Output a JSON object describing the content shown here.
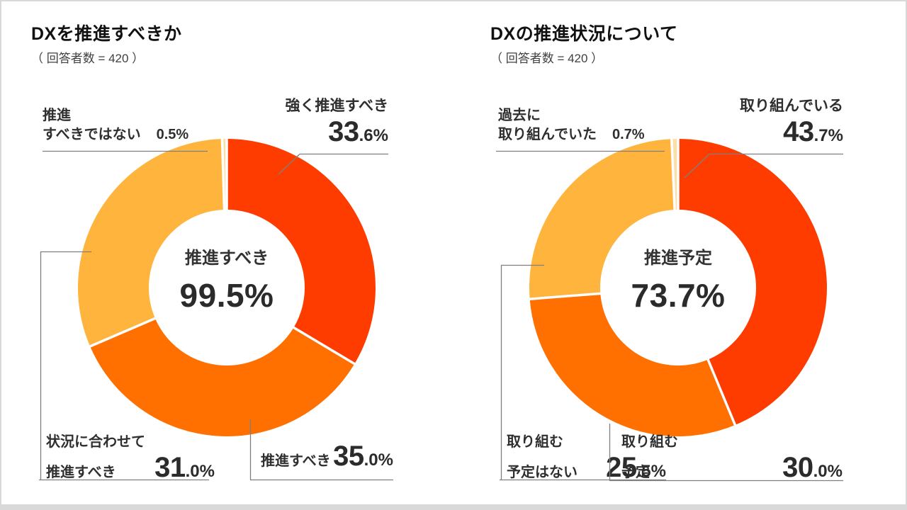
{
  "chart_data": [
    {
      "type": "pie",
      "donut": true,
      "title": "DXを推進すべきか",
      "subtitle": "（ 回答者数 = 420 ）",
      "start_angle": "12-oclock",
      "direction": "clockwise",
      "center_label": "推進すべき",
      "center_value": "99.5%",
      "segments": [
        {
          "label": "強く推進すべき",
          "value_pct": 33.6,
          "color": "#ff3c00"
        },
        {
          "label": "推進すべき",
          "value_pct": 35.0,
          "color": "#ff7000"
        },
        {
          "label": "状況に合わせて推進すべき",
          "value_pct": 31.0,
          "color": "#ffb43e"
        },
        {
          "label": "推進すべきではない",
          "value_pct": 0.5,
          "color": "#fbdfa7"
        }
      ],
      "callouts": {
        "top_right": {
          "line1": "強く推進すべき",
          "value_int": "33",
          "value_frac": ".6%"
        },
        "top_left": {
          "line1": "推進",
          "line2": "すべきではない",
          "value": "0.5%"
        },
        "bottom_left": {
          "line1": "状況に合わせて",
          "line2": "推進すべき",
          "value_int": "31",
          "value_frac": ".0%"
        },
        "bottom_right": {
          "line1": "推進すべき",
          "value_int": "35",
          "value_frac": ".0%"
        }
      }
    },
    {
      "type": "pie",
      "donut": true,
      "title": "DXの推進状況について",
      "subtitle": "（ 回答者数 = 420 ）",
      "start_angle": "12-oclock",
      "direction": "clockwise",
      "center_label": "推進予定",
      "center_value": "73.7%",
      "segments": [
        {
          "label": "取り組んでいる",
          "value_pct": 43.7,
          "color": "#ff3c00"
        },
        {
          "label": "取り組む予定",
          "value_pct": 30.0,
          "color": "#ff7000"
        },
        {
          "label": "取り組む予定はない",
          "value_pct": 25.5,
          "color": "#ffb43e"
        },
        {
          "label": "過去に取り組んでいた",
          "value_pct": 0.7,
          "color": "#fbdfa7"
        }
      ],
      "callouts": {
        "top_right": {
          "line1": "取り組んでいる",
          "value_int": "43",
          "value_frac": ".7%"
        },
        "top_left": {
          "line1": "過去に",
          "line2": "取り組んでいた",
          "value": "0.7%"
        },
        "bottom_left": {
          "line1": "取り組む",
          "line2": "予定はない",
          "value_int": "25",
          "value_frac": ".5%"
        },
        "bottom_right": {
          "line1": "取り組む",
          "line2": "予定",
          "value_int": "30",
          "value_frac": ".0%"
        }
      }
    }
  ],
  "style": {
    "leader_line_color": "#7f7f7f",
    "separator_color": "#ffffff",
    "accent_red": "#ff3c00",
    "accent_orange": "#ff7000",
    "accent_amber": "#ffb43e",
    "accent_pale": "#fbdfa7"
  }
}
